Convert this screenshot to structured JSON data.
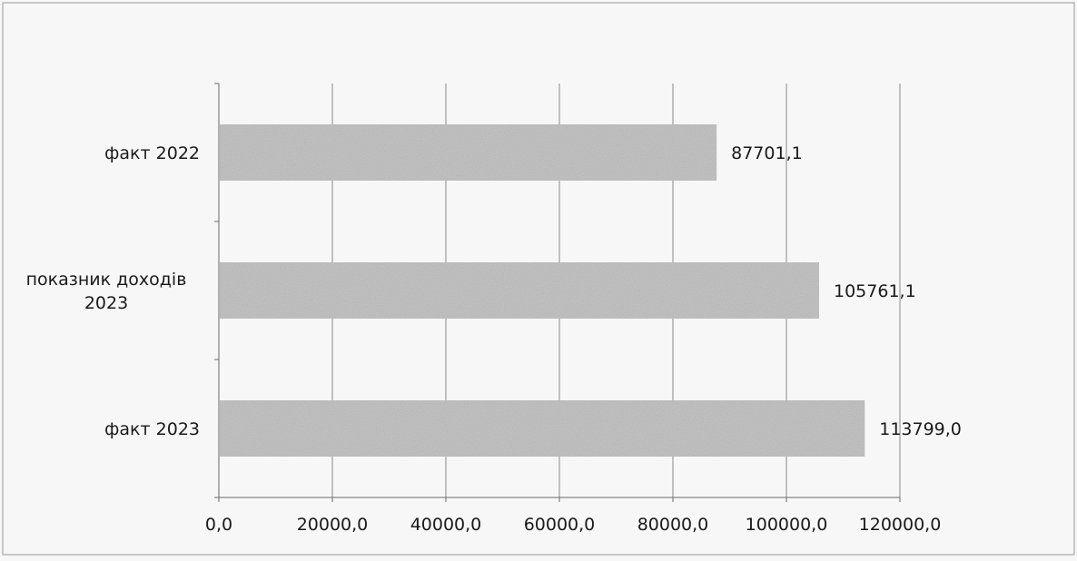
{
  "chart_data": {
    "type": "bar",
    "orientation": "horizontal",
    "categories": [
      [
        "факт 2022"
      ],
      [
        "показник доходів",
        "2023"
      ],
      [
        "факт 2023"
      ]
    ],
    "values": [
      87701.1,
      105761.1,
      113799.0
    ],
    "data_labels": [
      "87701,1",
      "105761,1",
      "113799,0"
    ],
    "xlim": [
      0,
      120000
    ],
    "x_ticks": [
      0,
      20000,
      40000,
      60000,
      80000,
      100000,
      120000
    ],
    "x_tick_labels": [
      "0,0",
      "20000,0",
      "40000,0",
      "60000,0",
      "80000,0",
      "100000,0",
      "120000,0"
    ],
    "grid": true,
    "bar_color": "#c4c4c4",
    "background": "#f7f7f7"
  }
}
